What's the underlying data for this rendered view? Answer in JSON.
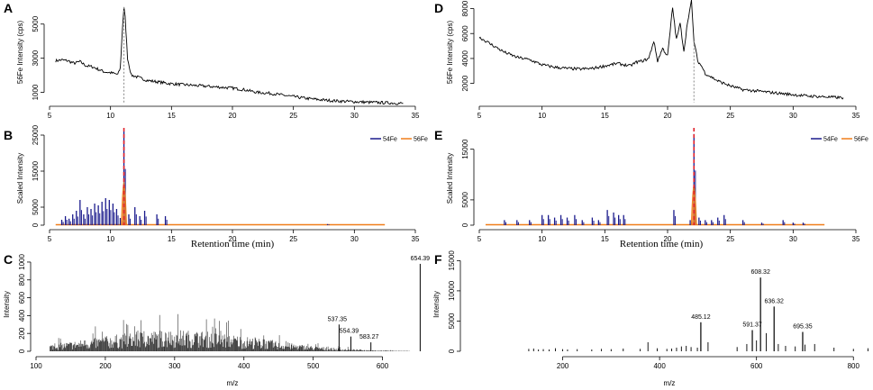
{
  "colors": {
    "fe54": "#1a1a8c",
    "fe56": "#f07d1a",
    "marker_red": "#e0202a",
    "marker_gray": "#888888",
    "line": "#000000"
  },
  "chart_data": [
    {
      "panel": "A",
      "type": "line",
      "ylabel": "56Fe Intensity (cps)",
      "xlim": [
        5,
        35
      ],
      "ylim": [
        500,
        6200
      ],
      "xticks": [
        "5",
        "10",
        "15",
        "20",
        "25",
        "30",
        "35"
      ],
      "yticks": [
        {
          "v": 1000,
          "label": "1000"
        },
        {
          "v": 3000,
          "label": "3000"
        },
        {
          "v": 5000,
          "label": "5000"
        }
      ],
      "marker_x": 11.1,
      "x": [
        5.5,
        6,
        6.5,
        7,
        7.5,
        8,
        8.5,
        9,
        9.5,
        10,
        10.3,
        10.6,
        10.8,
        11,
        11.1,
        11.2,
        11.4,
        11.7,
        12,
        13,
        14,
        15,
        16,
        17,
        18,
        19,
        20,
        21,
        22,
        23,
        24,
        25,
        26,
        27,
        28,
        29,
        30,
        31,
        32,
        33,
        34
      ],
      "y": [
        2850,
        2900,
        2850,
        2700,
        2800,
        2550,
        2500,
        2350,
        2200,
        2150,
        2100,
        2050,
        2400,
        5000,
        6000,
        5400,
        3000,
        2000,
        1950,
        1700,
        1600,
        1500,
        1450,
        1400,
        1350,
        1300,
        1250,
        1150,
        1000,
        950,
        850,
        750,
        650,
        580,
        520,
        480,
        450,
        420,
        400,
        380,
        350
      ]
    },
    {
      "panel": "B",
      "type": "bar",
      "ylabel": "Scaled Intensity",
      "xlabel": "Retention time (min)",
      "xlim": [
        5,
        35
      ],
      "ylim": [
        0,
        26000
      ],
      "xticks": [
        "5",
        "10",
        "15",
        "20",
        "25",
        "30",
        "35"
      ],
      "yticks": [
        {
          "v": 0,
          "label": "0"
        },
        {
          "v": 5000,
          "label": "5000"
        },
        {
          "v": 15000,
          "label": "15000"
        },
        {
          "v": 25000,
          "label": "25000"
        }
      ],
      "legend": [
        "54Fe",
        "56Fe"
      ],
      "marker_x": 11.1,
      "series54": {
        "x": [
          6,
          6.3,
          6.6,
          6.9,
          7.2,
          7.5,
          7.8,
          8.1,
          8.4,
          8.7,
          9.0,
          9.3,
          9.6,
          9.9,
          10.2,
          10.5,
          10.8,
          11.1,
          11.5,
          12.0,
          12.4,
          12.8,
          13.8,
          14.5,
          27.8
        ],
        "y": [
          1500,
          2500,
          1800,
          3000,
          4000,
          7000,
          3000,
          5000,
          4500,
          6000,
          5500,
          6500,
          7500,
          7000,
          6000,
          4500,
          2000,
          26000,
          3000,
          5000,
          2500,
          4000,
          3000,
          2500,
          300
        ]
      },
      "fe56_line_range": [
        5.5,
        32.5
      ],
      "fe56_peak": {
        "x": 11.1,
        "y": 24000
      }
    },
    {
      "panel": "C",
      "type": "bar",
      "ylabel": "Intensity",
      "xlabel": "",
      "xlim": [
        100,
        650
      ],
      "ylim": [
        0,
        1050
      ],
      "xticks": [
        "100",
        "200",
        "300",
        "400",
        "500",
        "600"
      ],
      "yticks": [
        {
          "v": 0,
          "label": "0"
        },
        {
          "v": 200,
          "label": "200"
        },
        {
          "v": 400,
          "label": "400"
        },
        {
          "v": 600,
          "label": "600"
        },
        {
          "v": 800,
          "label": "800"
        },
        {
          "v": 1000,
          "label": "1000"
        }
      ],
      "noise_range": [
        120,
        640
      ],
      "noise_max": 440,
      "peaks": [
        {
          "x": 537.35,
          "y": 300,
          "label": "537.35"
        },
        {
          "x": 554.39,
          "y": 165,
          "label": "554.39"
        },
        {
          "x": 583.27,
          "y": 100,
          "label": "583.27"
        },
        {
          "x": 654.39,
          "y": 980,
          "label": "654.39"
        }
      ]
    },
    {
      "panel": "D",
      "type": "line",
      "ylabel": "56Fe Intensity (cps)",
      "xlim": [
        5,
        35
      ],
      "ylim": [
        600,
        8400
      ],
      "xticks": [
        "5",
        "10",
        "15",
        "20",
        "25",
        "30",
        "35"
      ],
      "yticks": [
        {
          "v": 2000,
          "label": "2000"
        },
        {
          "v": 4000,
          "label": "4000"
        },
        {
          "v": 6000,
          "label": "6000"
        },
        {
          "v": 8000,
          "label": "8000"
        }
      ],
      "marker_x": 22.1,
      "x": [
        5,
        5.5,
        6,
        7,
        8,
        9,
        10,
        11,
        12,
        13,
        14,
        15,
        16,
        17,
        17.5,
        18,
        18.5,
        18.9,
        19.2,
        19.6,
        20,
        20.4,
        20.7,
        21,
        21.3,
        21.6,
        21.9,
        22.1,
        22.4,
        22.7,
        23,
        23.5,
        24,
        24.5,
        25,
        26,
        27,
        28,
        29,
        30,
        31,
        32,
        33,
        34
      ],
      "y": [
        5700,
        5400,
        5100,
        4500,
        4100,
        3900,
        3500,
        3300,
        3200,
        3150,
        3200,
        3400,
        3600,
        3400,
        3700,
        3800,
        4000,
        5400,
        3800,
        4800,
        4200,
        8100,
        5500,
        6800,
        4600,
        7000,
        8600,
        5400,
        3800,
        3400,
        2800,
        2500,
        2200,
        2000,
        1800,
        1500,
        1400,
        1300,
        1200,
        1100,
        1000,
        950,
        900,
        850
      ]
    },
    {
      "panel": "E",
      "type": "bar",
      "ylabel": "Scaled Intensity",
      "xlabel": "Retention time (min)",
      "xlim": [
        5,
        35
      ],
      "ylim": [
        0,
        18500
      ],
      "xticks": [
        "5",
        "10",
        "15",
        "20",
        "25",
        "30",
        "35"
      ],
      "yticks": [
        {
          "v": 0,
          "label": "0"
        },
        {
          "v": 5000,
          "label": "5000"
        },
        {
          "v": 15000,
          "label": "15000"
        }
      ],
      "legend": [
        "54Fe",
        "56Fe"
      ],
      "marker_x": 22.1,
      "series54": {
        "x": [
          7,
          8,
          9,
          10,
          10.5,
          11,
          11.5,
          12,
          12.6,
          13.2,
          14,
          14.5,
          15.2,
          15.7,
          16.1,
          16.5,
          20.5,
          21.8,
          22.1,
          22.5,
          23,
          23.5,
          24,
          24.5,
          26,
          27.5,
          29.2,
          30,
          30.8
        ],
        "y": [
          1000,
          1000,
          1000,
          2000,
          2000,
          1500,
          2000,
          1500,
          2000,
          1000,
          1500,
          1000,
          3000,
          2500,
          2000,
          2000,
          3000,
          1000,
          18000,
          1500,
          1000,
          1000,
          1500,
          2000,
          1000,
          500,
          1000,
          500,
          500
        ]
      },
      "fe56_line_range": [
        5.5,
        32.5
      ],
      "fe56_peak": {
        "x": 22.1,
        "y": 16000
      }
    },
    {
      "panel": "F",
      "type": "bar",
      "ylabel": "Intensity",
      "xlabel": "m/z",
      "xlim": [
        0,
        820
      ],
      "ylim": [
        0,
        15500
      ],
      "xticks": [
        "200",
        "400",
        "600",
        "800"
      ],
      "yticks": [
        {
          "v": 0,
          "label": "0"
        },
        {
          "v": 5000,
          "label": "5000"
        },
        {
          "v": 10000,
          "label": "10000"
        },
        {
          "v": 15000,
          "label": "15000"
        }
      ],
      "noise_x": [
        130,
        140,
        150,
        160,
        172,
        185,
        200,
        210,
        230,
        260,
        280,
        300,
        325,
        360,
        376,
        395,
        415,
        425,
        435,
        445,
        455,
        465,
        478,
        500,
        560,
        580,
        600,
        620,
        645,
        660,
        680,
        700,
        720,
        760,
        800,
        830
      ],
      "noise_y": [
        400,
        450,
        300,
        350,
        300,
        500,
        350,
        300,
        350,
        300,
        400,
        350,
        450,
        400,
        1500,
        500,
        400,
        450,
        600,
        800,
        900,
        700,
        600,
        1500,
        700,
        1200,
        1800,
        3000,
        1200,
        900,
        800,
        1100,
        1200,
        600,
        400,
        500
      ],
      "peaks": [
        {
          "x": 485.12,
          "y": 4800,
          "label": "485.12"
        },
        {
          "x": 591.37,
          "y": 3500,
          "label": "591.37"
        },
        {
          "x": 608.32,
          "y": 12200,
          "label": "608.32"
        },
        {
          "x": 636.32,
          "y": 7400,
          "label": "636.32"
        },
        {
          "x": 695.35,
          "y": 3200,
          "label": "695.35"
        }
      ]
    }
  ],
  "labels": {
    "A": "A",
    "B": "B",
    "C": "C",
    "D": "D",
    "E": "E",
    "F": "F",
    "left_x_title_rt": "Retention time (min)",
    "right_x_title_rt": "Retention time (min)",
    "left_mz_title": "m/z",
    "right_mz_title": "m/z"
  }
}
